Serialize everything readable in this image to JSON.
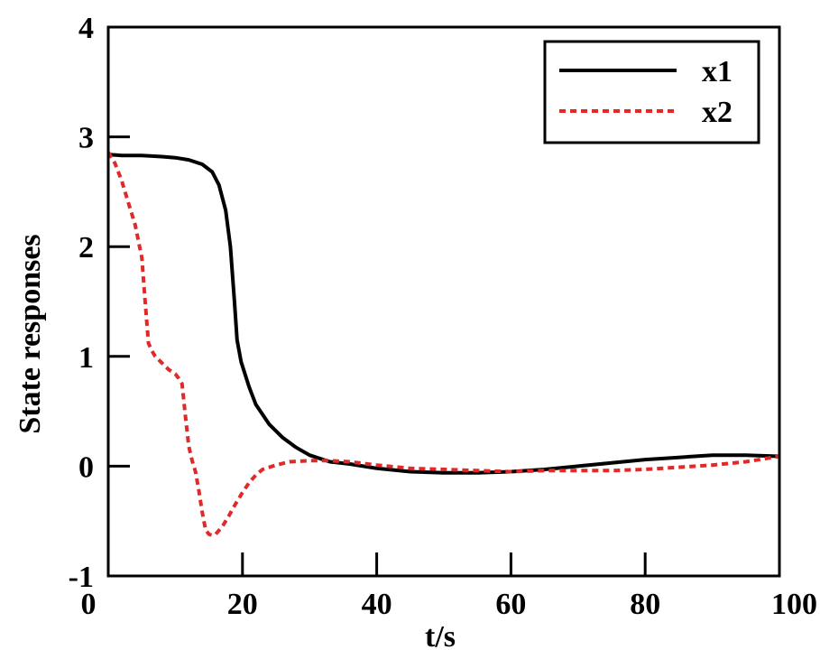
{
  "chart_data": {
    "type": "line",
    "title": "",
    "xlabel": "t/s",
    "ylabel": "State responses",
    "xlim": [
      0,
      100
    ],
    "ylim": [
      -1,
      4
    ],
    "xticks": [
      "0",
      "20",
      "40",
      "60",
      "80",
      "100"
    ],
    "yticks": [
      "-1",
      "0",
      "1",
      "2",
      "3",
      "4"
    ],
    "grid": false,
    "legend_position": "top-right",
    "series": [
      {
        "name": "x1",
        "color": "#000000",
        "style": "solid",
        "points": [
          [
            0,
            2.84
          ],
          [
            2,
            2.83
          ],
          [
            5,
            2.83
          ],
          [
            8,
            2.82
          ],
          [
            10,
            2.81
          ],
          [
            12,
            2.79
          ],
          [
            14,
            2.75
          ],
          [
            15.5,
            2.68
          ],
          [
            16.5,
            2.56
          ],
          [
            17.5,
            2.33
          ],
          [
            18.2,
            2.0
          ],
          [
            18.8,
            1.5
          ],
          [
            19.2,
            1.15
          ],
          [
            19.8,
            0.95
          ],
          [
            21,
            0.72
          ],
          [
            22,
            0.56
          ],
          [
            24,
            0.38
          ],
          [
            26,
            0.26
          ],
          [
            28,
            0.17
          ],
          [
            30,
            0.1
          ],
          [
            33,
            0.04
          ],
          [
            36,
            0.02
          ],
          [
            40,
            -0.02
          ],
          [
            45,
            -0.05
          ],
          [
            50,
            -0.06
          ],
          [
            55,
            -0.06
          ],
          [
            60,
            -0.05
          ],
          [
            65,
            -0.03
          ],
          [
            70,
            0.0
          ],
          [
            75,
            0.03
          ],
          [
            80,
            0.06
          ],
          [
            85,
            0.08
          ],
          [
            90,
            0.1
          ],
          [
            95,
            0.1
          ],
          [
            100,
            0.09
          ]
        ]
      },
      {
        "name": "x2",
        "color": "#e02a2a",
        "style": "dashed",
        "points": [
          [
            0,
            2.86
          ],
          [
            1,
            2.76
          ],
          [
            2,
            2.6
          ],
          [
            3,
            2.4
          ],
          [
            4,
            2.2
          ],
          [
            5,
            1.9
          ],
          [
            5.5,
            1.5
          ],
          [
            6,
            1.12
          ],
          [
            6.5,
            1.05
          ],
          [
            7,
            1.0
          ],
          [
            8,
            0.94
          ],
          [
            9,
            0.88
          ],
          [
            10,
            0.84
          ],
          [
            10.5,
            0.8
          ],
          [
            11,
            0.75
          ],
          [
            11.5,
            0.45
          ],
          [
            12,
            0.18
          ],
          [
            12.5,
            0.05
          ],
          [
            13,
            -0.05
          ],
          [
            13.5,
            -0.22
          ],
          [
            14,
            -0.42
          ],
          [
            14.5,
            -0.58
          ],
          [
            15,
            -0.62
          ],
          [
            15.5,
            -0.63
          ],
          [
            16,
            -0.62
          ],
          [
            17,
            -0.55
          ],
          [
            18,
            -0.45
          ],
          [
            19,
            -0.34
          ],
          [
            20,
            -0.24
          ],
          [
            21,
            -0.15
          ],
          [
            22,
            -0.08
          ],
          [
            23,
            -0.03
          ],
          [
            25,
            0.01
          ],
          [
            27,
            0.04
          ],
          [
            30,
            0.05
          ],
          [
            33,
            0.05
          ],
          [
            36,
            0.04
          ],
          [
            40,
            0.01
          ],
          [
            45,
            -0.02
          ],
          [
            50,
            -0.03
          ],
          [
            55,
            -0.04
          ],
          [
            60,
            -0.05
          ],
          [
            65,
            -0.04
          ],
          [
            70,
            -0.04
          ],
          [
            75,
            -0.04
          ],
          [
            80,
            -0.03
          ],
          [
            85,
            -0.01
          ],
          [
            90,
            0.01
          ],
          [
            95,
            0.04
          ],
          [
            100,
            0.09
          ]
        ]
      }
    ]
  }
}
